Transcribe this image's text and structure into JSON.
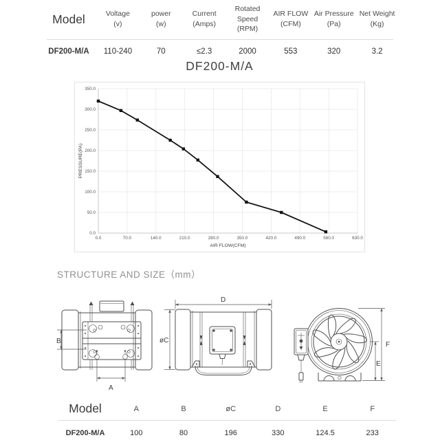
{
  "spec_table": {
    "columns": [
      {
        "name": "Model",
        "unit": "",
        "value": "DF200-M/A"
      },
      {
        "name": "Voltage",
        "unit": "(v)",
        "value": "110-240"
      },
      {
        "name": "power",
        "unit": "(w)",
        "value": "70"
      },
      {
        "name": "Current",
        "unit": "(Amps)",
        "value": "≤2.3"
      },
      {
        "name": "Rotated Speed",
        "unit": "(RPM)",
        "value": "2000"
      },
      {
        "name": "AIR FLOW",
        "unit": "(CFM)",
        "value": "553"
      },
      {
        "name": "Air Pressure",
        "unit": "(Pa)",
        "value": "320"
      },
      {
        "name": "Net Weight",
        "unit": "(Kg)",
        "value": "3.2"
      }
    ]
  },
  "chart": {
    "title": "DF200-M/A"
  },
  "chart_data": {
    "type": "line",
    "title": "DF200-M/A",
    "xlabel": "AIR FLOW(CFM)",
    "ylabel": "PRESSURE(PA)",
    "xlim": [
      0,
      630
    ],
    "ylim": [
      0,
      350
    ],
    "xticks": [
      0,
      70,
      140,
      210,
      280,
      350,
      420,
      490,
      560,
      630
    ],
    "yticks": [
      0,
      50,
      100,
      150,
      200,
      250,
      300,
      350
    ],
    "grid": true,
    "legend_position": "none",
    "line_color": "#141414",
    "series": [
      {
        "name": "DF200-M/A",
        "x": [
          0,
          55,
          95,
          175,
          207,
          242,
          290,
          360,
          445,
          553
        ],
        "y": [
          320,
          297,
          274,
          225,
          204,
          177,
          137,
          75,
          50,
          3
        ]
      }
    ]
  },
  "structure": {
    "heading": "STRUCTURE AND SIZE（mm）"
  },
  "dimensions": {
    "a": "A",
    "b": "B",
    "c": "øC",
    "d": "D",
    "e": "E",
    "f": "F"
  },
  "dim_table": {
    "headers": [
      "Model",
      "A",
      "B",
      "øC",
      "D",
      "E",
      "F"
    ],
    "row": [
      "DF200-M/A",
      "100",
      "80",
      "196",
      "330",
      "124.5",
      "233"
    ]
  }
}
